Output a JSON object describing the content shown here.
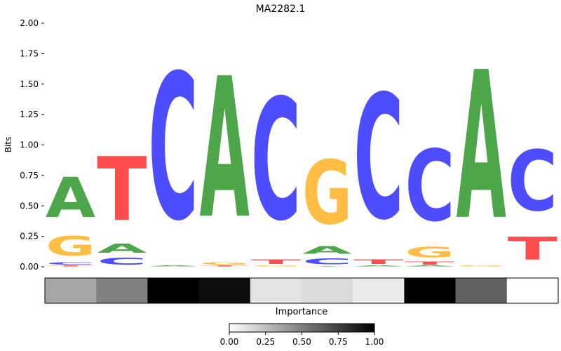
{
  "chart_data": {
    "type": "sequence-logo",
    "title": "MA2282.1",
    "ylabel": "Bits",
    "ylim": [
      0,
      2.0
    ],
    "yticks": [
      0.0,
      0.25,
      0.5,
      0.75,
      1.0,
      1.25,
      1.5,
      1.75,
      2.0
    ],
    "ytick_labels": [
      "0.00",
      "0.25",
      "0.50",
      "0.75",
      "1.00",
      "1.25",
      "1.50",
      "1.75",
      "2.00"
    ],
    "base_colors": {
      "A": "#4ea64a",
      "C": "#4d4dff",
      "G": "#ffbe43",
      "T": "#ff4d4d"
    },
    "positions": [
      [
        {
          "base": "T",
          "bits": 0.01
        },
        {
          "base": "C",
          "bits": 0.03
        },
        {
          "base": "G",
          "bits": 0.26
        },
        {
          "base": "A",
          "bits": 0.53
        }
      ],
      [
        {
          "base": "C",
          "bits": 0.09
        },
        {
          "base": "A",
          "bits": 0.12
        },
        {
          "base": "T",
          "bits": 0.84
        }
      ],
      [
        {
          "base": "A",
          "bits": 0.01
        },
        {
          "base": "C",
          "bits": 1.92
        }
      ],
      [
        {
          "base": "T",
          "bits": 0.01
        },
        {
          "base": "G",
          "bits": 0.03
        },
        {
          "base": "A",
          "bits": 1.85
        }
      ],
      [
        {
          "base": "G",
          "bits": 0.01
        },
        {
          "base": "T",
          "bits": 0.06
        },
        {
          "base": "C",
          "bits": 1.6
        }
      ],
      [
        {
          "base": "T",
          "bits": 0.005
        },
        {
          "base": "C",
          "bits": 0.08
        },
        {
          "base": "A",
          "bits": 0.1
        },
        {
          "base": "G",
          "bits": 0.84
        }
      ],
      [
        {
          "base": "A",
          "bits": 0.01
        },
        {
          "base": "T",
          "bits": 0.06
        },
        {
          "base": "C",
          "bits": 1.64
        }
      ],
      [
        {
          "base": "A",
          "bits": 0.01
        },
        {
          "base": "T",
          "bits": 0.04
        },
        {
          "base": "G",
          "bits": 0.14
        },
        {
          "base": "C",
          "bits": 0.94
        }
      ],
      [
        {
          "base": "G",
          "bits": 0.01
        },
        {
          "base": "C",
          "bits": 0.0
        },
        {
          "base": "A",
          "bits": 1.95
        }
      ],
      [
        {
          "base": "T",
          "bits": 0.3
        },
        {
          "base": "C",
          "bits": 0.8
        }
      ]
    ],
    "importance_label": "Importance",
    "importance": [
      0.35,
      0.5,
      1.0,
      0.95,
      0.11,
      0.14,
      0.08,
      1.0,
      0.62,
      0.0
    ],
    "colorbar_range": [
      0,
      1
    ],
    "colorbar_ticks": [
      "0.00",
      "0.25",
      "0.50",
      "0.75",
      "1.00"
    ]
  }
}
